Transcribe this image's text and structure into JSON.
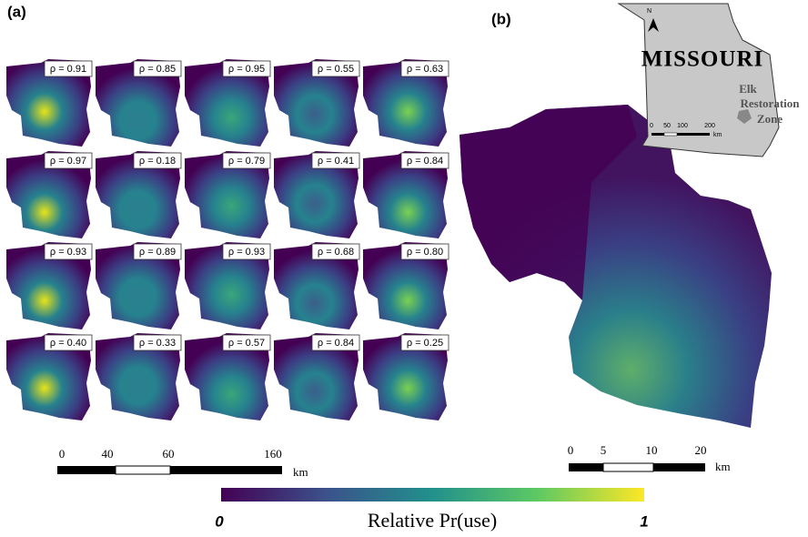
{
  "panel_a": {
    "label": "(a)",
    "rho_labels": [
      "ρ = 0.91",
      "ρ = 0.85",
      "ρ = 0.95",
      "ρ = 0.55",
      "ρ = 0.63",
      "ρ = 0.97",
      "ρ = 0.18",
      "ρ = 0.79",
      "ρ = 0.41",
      "ρ = 0.84",
      "ρ = 0.93",
      "ρ = 0.89",
      "ρ = 0.93",
      "ρ = 0.68",
      "ρ = 0.80",
      "ρ = 0.40",
      "ρ = 0.33",
      "ρ = 0.57",
      "ρ = 0.84",
      "ρ = 0.25"
    ],
    "scale_bar": {
      "ticks": [
        "0",
        "40",
        "60",
        "160"
      ],
      "unit": "km"
    }
  },
  "panel_b": {
    "label": "(b)",
    "scale_bar": {
      "ticks": [
        "0",
        "5",
        "10",
        "20"
      ],
      "unit": "km"
    },
    "inset": {
      "state": "MISSOURI",
      "zone_label": [
        "Elk",
        "Restoration",
        "Zone"
      ],
      "scale_ticks": [
        "0",
        "50",
        "100",
        "200"
      ],
      "scale_unit": "km",
      "north": "N"
    }
  },
  "colorbar": {
    "min_label": "0",
    "title": "Relative Pr(use)",
    "max_label": "1"
  }
}
